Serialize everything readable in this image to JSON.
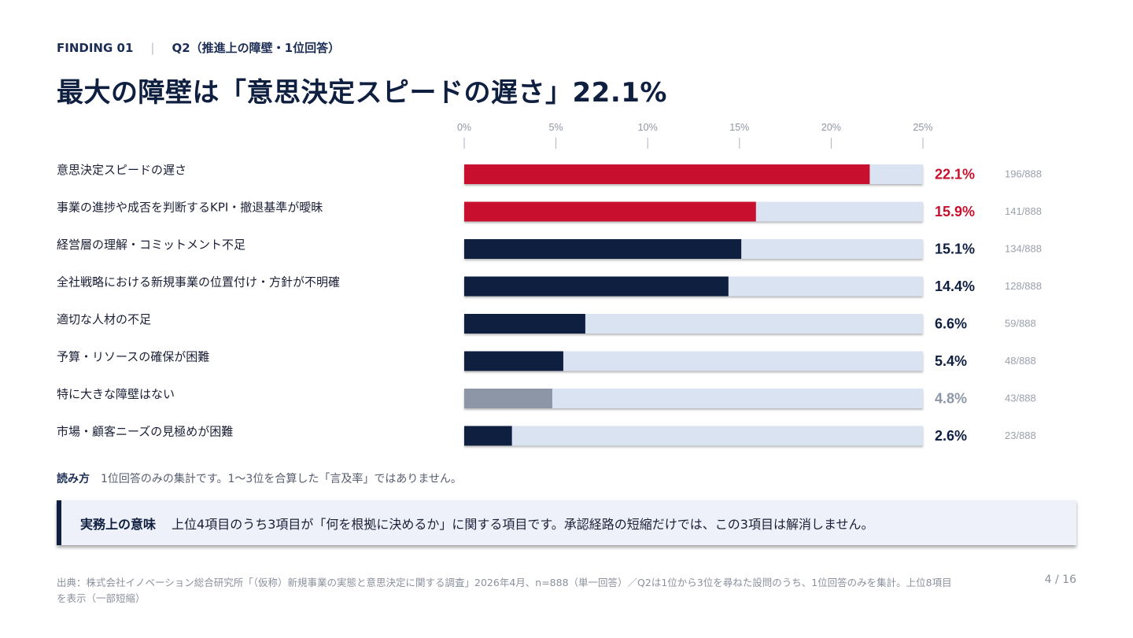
{
  "header": {
    "finding": "FINDING 01",
    "separator": "|",
    "question": "Q2（推進上の障壁・1位回答）"
  },
  "title": "最大の障壁は「意思決定スピードの遅さ」22.1%",
  "colors": {
    "highlight": "#c8102e",
    "primary": "#0f1f40",
    "muted": "#8d96a6",
    "track": "#d9e3f2",
    "axis": "#aab2c0"
  },
  "chart_data": {
    "type": "bar",
    "orientation": "horizontal",
    "xlim": [
      0,
      25
    ],
    "ticks": [
      0,
      5,
      10,
      15,
      20,
      25
    ],
    "tick_labels": [
      "0%",
      "5%",
      "10%",
      "15%",
      "20%",
      "25%"
    ],
    "categories": [
      "意思決定スピードの遅さ",
      "事業の進捗や成否を判断するKPI・撤退基準が曖昧",
      "経営層の理解・コミットメント不足",
      "全社戦略における新規事業の位置付け・方針が不明確",
      "適切な人材の不足",
      "予算・リソースの確保が困難",
      "特に大きな障壁はない",
      "市場・顧客ニーズの見極めが困難"
    ],
    "values": [
      22.1,
      15.9,
      15.1,
      14.4,
      6.6,
      5.4,
      4.8,
      2.6
    ],
    "value_labels": [
      "22.1%",
      "15.9%",
      "15.1%",
      "14.4%",
      "6.6%",
      "5.4%",
      "4.8%",
      "2.6%"
    ],
    "counts": [
      "196/888",
      "141/888",
      "134/888",
      "128/888",
      "59/888",
      "48/888",
      "43/888",
      "23/888"
    ],
    "styles": [
      "highlight",
      "highlight",
      "primary",
      "primary",
      "primary",
      "primary",
      "muted",
      "primary"
    ],
    "grid": false,
    "legend": "none"
  },
  "reading": {
    "label": "読み方",
    "text": "1位回答のみの集計です。1〜3位を合算した「言及率」ではありません。"
  },
  "callout": {
    "label": "実務上の意味",
    "text": "上位4項目のうち3項目が「何を根拠に決めるか」に関する項目です。承認経路の短縮だけでは、この3項目は解消しません。"
  },
  "source": "出典：株式会社イノベーション総合研究所「（仮称）新規事業の実態と意思決定に関する調査」2026年4月、n=888（単一回答）／Q2は1位から3位を尋ねた設問のうち、1位回答のみを集計。上位8項目を表示（一部短縮）",
  "page_number": "4 / 16"
}
